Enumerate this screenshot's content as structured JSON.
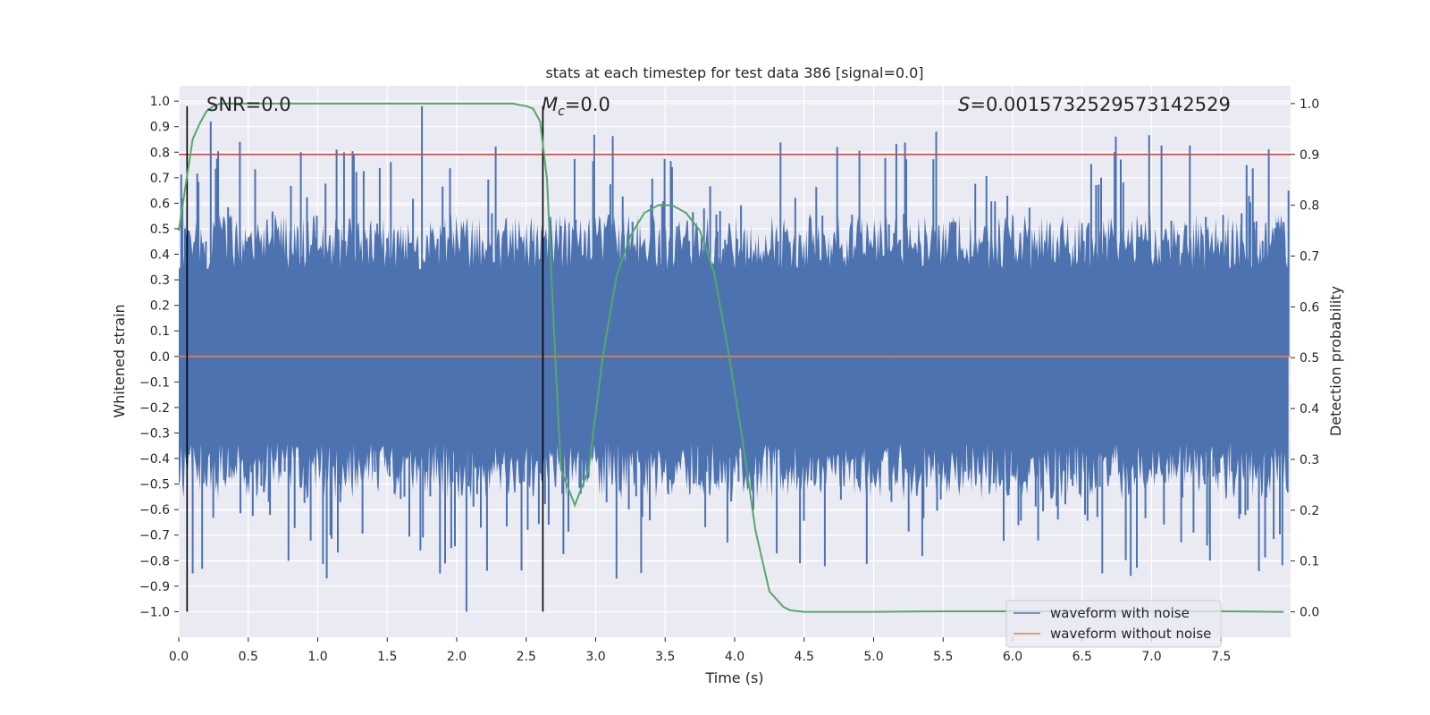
{
  "chart_data": {
    "type": "line",
    "title": "stats at each timestep for test data 386 [signal=0.0]",
    "xlabel": "Time (s)",
    "ylabel": "Whitened strain",
    "y2label": "Detection probability",
    "xlim": [
      0.0,
      8.0
    ],
    "ylim": [
      -1.1,
      1.06
    ],
    "y2lim": [
      -0.05,
      1.035
    ],
    "x_ticks": [
      0.0,
      0.5,
      1.0,
      1.5,
      2.0,
      2.5,
      3.0,
      3.5,
      4.0,
      4.5,
      5.0,
      5.5,
      6.0,
      6.5,
      7.0,
      7.5
    ],
    "x_tick_labels": [
      "0.0",
      "0.5",
      "1.0",
      "1.5",
      "2.0",
      "2.5",
      "3.0",
      "3.5",
      "4.0",
      "4.5",
      "5.0",
      "5.5",
      "6.0",
      "6.5",
      "7.0",
      "7.5"
    ],
    "y_ticks": [
      1.0,
      0.9,
      0.8,
      0.7,
      0.6,
      0.5,
      0.4,
      0.3,
      0.2,
      0.1,
      0.0,
      -0.1,
      -0.2,
      -0.3,
      -0.4,
      -0.5,
      -0.6,
      -0.7,
      -0.8,
      -0.9,
      -1.0
    ],
    "y_tick_labels": [
      "1.0",
      "0.9",
      "0.8",
      "0.7",
      "0.6",
      "0.5",
      "0.4",
      "0.3",
      "0.2",
      "0.1",
      "0.0",
      "−0.1",
      "−0.2",
      "−0.3",
      "−0.4",
      "−0.5",
      "−0.6",
      "−0.7",
      "−0.8",
      "−0.9",
      "−1.0"
    ],
    "y2_ticks": [
      1.0,
      0.9,
      0.8,
      0.7,
      0.6,
      0.5,
      0.4,
      0.3,
      0.2,
      0.1,
      0.0
    ],
    "y2_tick_labels": [
      "1.0",
      "0.9",
      "0.8",
      "0.7",
      "0.6",
      "0.5",
      "0.4",
      "0.3",
      "0.2",
      "0.1",
      "0.0"
    ],
    "grid": true,
    "legend_position": "bottom-right",
    "series": [
      {
        "name": "waveform with noise",
        "color": "#4c72b0",
        "axis": "left",
        "description": "noise-like strain, roughly symmetric, typical envelope ±0.5, peaks 0.98 / -1.0"
      },
      {
        "name": "waveform without noise",
        "color": "#dd8452",
        "axis": "left",
        "constant": 0.0
      },
      {
        "name": "Detection probability",
        "color": "#55a868",
        "axis": "right",
        "x": [
          0.0,
          0.05,
          0.1,
          0.15,
          0.2,
          0.25,
          0.3,
          0.4,
          0.5,
          1.0,
          1.5,
          2.0,
          2.4,
          2.5,
          2.55,
          2.6,
          2.65,
          2.7,
          2.75,
          2.85,
          2.95,
          3.05,
          3.15,
          3.25,
          3.35,
          3.45,
          3.55,
          3.65,
          3.75,
          3.85,
          3.95,
          4.05,
          4.15,
          4.25,
          4.35,
          4.4,
          4.5,
          5.0,
          5.5,
          6.0,
          6.5,
          7.0,
          7.5,
          7.95
        ],
        "y": [
          0.75,
          0.84,
          0.93,
          0.96,
          0.985,
          0.995,
          1.0,
          1.0,
          1.0,
          1.0,
          1.0,
          1.0,
          1.0,
          0.995,
          0.99,
          0.965,
          0.85,
          0.55,
          0.28,
          0.21,
          0.28,
          0.5,
          0.66,
          0.74,
          0.785,
          0.8,
          0.8,
          0.785,
          0.75,
          0.67,
          0.52,
          0.35,
          0.16,
          0.04,
          0.01,
          0.003,
          0.0,
          0.0,
          0.001,
          0.001,
          0.001,
          0.001,
          0.001,
          0.0
        ]
      }
    ],
    "threshold": {
      "value": 0.9,
      "axis": "right",
      "color": "#c44e52"
    },
    "vlines": [
      {
        "x": 0.06,
        "y0": -1.0,
        "y1": 0.98
      },
      {
        "x": 2.62,
        "y0": -1.0,
        "y1": 0.98
      }
    ],
    "annotations": [
      {
        "text": "SNR=0.0",
        "x": 0.19,
        "y": 1.0
      },
      {
        "mc_symbol": "M",
        "mc_sub": "c",
        "text": "=0.0",
        "x": 2.6,
        "y": 1.0
      },
      {
        "s_symbol": "S",
        "text": "=0.0015732529573142529",
        "x": 5.6,
        "y": 1.0
      }
    ],
    "legend": [
      {
        "label": "waveform with noise",
        "color": "#4c72b0"
      },
      {
        "label": "waveform without noise",
        "color": "#dd8452"
      }
    ]
  }
}
